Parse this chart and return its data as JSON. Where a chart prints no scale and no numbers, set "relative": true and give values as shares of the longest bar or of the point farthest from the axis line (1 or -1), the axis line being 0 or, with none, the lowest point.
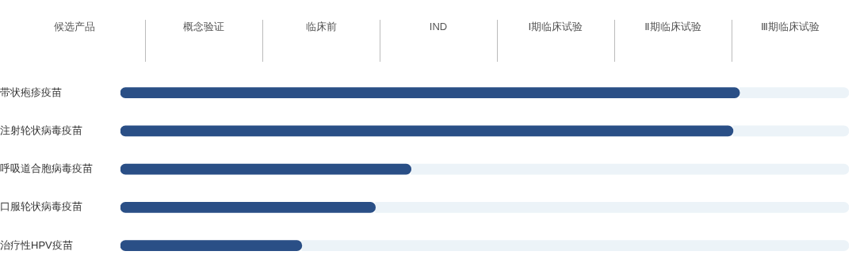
{
  "chart_data": {
    "type": "bar",
    "orientation": "horizontal",
    "relative": true,
    "stacked": true,
    "ylabel": "候选产品",
    "categories": [
      "带状疱疹疫苗",
      "注射轮状病毒疫苗",
      "呼吸道合胞病毒疫苗",
      "口服轮状病毒疫苗",
      "治疗性HPV疫苗"
    ],
    "series": [
      {
        "color": "#2a4f86",
        "values": [
          0.85,
          0.841,
          0.399,
          0.35,
          0.249
        ]
      },
      {
        "color": "#ecf3f8",
        "values": [
          0.15,
          0.159,
          0.601,
          0.65,
          0.751
        ]
      }
    ],
    "annotations": [
      "概念验证",
      "临床前",
      "IND",
      "Ⅰ期临床试验",
      "Ⅱ期临床试验",
      "Ⅲ期临床试验"
    ],
    "legend": false
  }
}
